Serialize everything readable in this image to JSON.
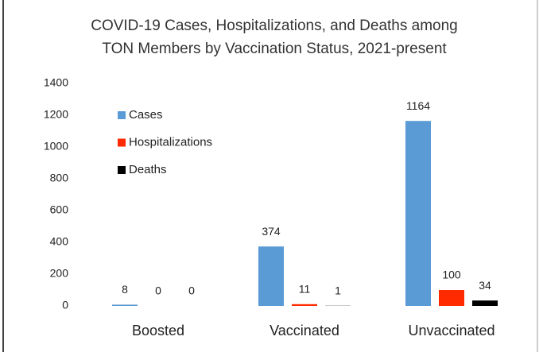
{
  "chart_data": {
    "type": "bar",
    "title": [
      "COVID-19 Cases, Hospitalizations, and Deaths among",
      "TON Members by Vaccination Status, 2021-present"
    ],
    "categories": [
      "Boosted",
      "Vaccinated",
      "Unvaccinated"
    ],
    "series": [
      {
        "name": "Cases",
        "color": "#5b9bd5",
        "values": [
          8,
          374,
          1164
        ]
      },
      {
        "name": "Hospitalizations",
        "color": "#ff2a00",
        "values": [
          0,
          11,
          100
        ]
      },
      {
        "name": "Deaths",
        "color": "#000000",
        "values": [
          0,
          1,
          34
        ]
      }
    ],
    "ylim": [
      0,
      1400
    ],
    "yticks": [
      0,
      200,
      400,
      600,
      800,
      1000,
      1200,
      1400
    ],
    "grid": false,
    "legend": "top-left"
  }
}
